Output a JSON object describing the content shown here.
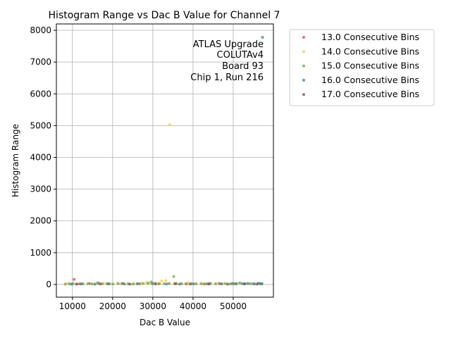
{
  "chart_data": {
    "type": "scatter",
    "title": "Histogram Range vs Dac B Value for Channel 7",
    "xlabel": "Dac B Value",
    "ylabel": "Histogram Range",
    "xlim": [
      6000,
      60000
    ],
    "ylim": [
      -400,
      8200
    ],
    "xticks": [
      10000,
      20000,
      30000,
      40000,
      50000
    ],
    "yticks": [
      0,
      1000,
      2000,
      3000,
      4000,
      5000,
      6000,
      7000,
      8000
    ],
    "grid": true,
    "legend_position": "outside-right",
    "annotation": [
      "ATLAS Upgrade",
      "COLUTAv4",
      "Board 93",
      "Chip 1, Run 216"
    ],
    "series": [
      {
        "name": "13.0 Consecutive Bins",
        "color": "#e8474a",
        "points": [
          [
            10400,
            160
          ],
          [
            11800,
            20
          ],
          [
            14200,
            30
          ],
          [
            16500,
            40
          ],
          [
            18800,
            15
          ],
          [
            22300,
            30
          ],
          [
            26800,
            20
          ],
          [
            31500,
            25
          ],
          [
            35800,
            30
          ],
          [
            38200,
            20
          ],
          [
            42700,
            15
          ],
          [
            46500,
            30
          ],
          [
            50200,
            20
          ],
          [
            54600,
            25
          ],
          [
            56800,
            15
          ]
        ]
      },
      {
        "name": "14.0 Consecutive Bins",
        "color": "#f5c842",
        "points": [
          [
            34200,
            5030
          ],
          [
            32200,
            110
          ],
          [
            33200,
            120
          ],
          [
            8600,
            30
          ],
          [
            9500,
            20
          ],
          [
            12500,
            25
          ],
          [
            15200,
            20
          ],
          [
            17800,
            30
          ],
          [
            19500,
            15
          ],
          [
            21200,
            40
          ],
          [
            23800,
            25
          ],
          [
            25300,
            20
          ],
          [
            27200,
            40
          ],
          [
            28400,
            60
          ],
          [
            29200,
            30
          ],
          [
            30800,
            50
          ],
          [
            31700,
            30
          ],
          [
            33900,
            20
          ],
          [
            35400,
            40
          ],
          [
            36900,
            25
          ],
          [
            38900,
            60
          ],
          [
            40500,
            30
          ],
          [
            42200,
            20
          ],
          [
            44100,
            40
          ],
          [
            45800,
            25
          ],
          [
            47400,
            30
          ],
          [
            49200,
            20
          ],
          [
            51300,
            35
          ],
          [
            53000,
            25
          ],
          [
            54800,
            20
          ],
          [
            56200,
            30
          ],
          [
            57100,
            15
          ]
        ]
      },
      {
        "name": "15.0 Consecutive Bins",
        "color": "#6aa84f",
        "points": [
          [
            35200,
            250
          ],
          [
            8200,
            10
          ],
          [
            9200,
            20
          ],
          [
            10200,
            30
          ],
          [
            11200,
            15
          ],
          [
            12600,
            20
          ],
          [
            13800,
            25
          ],
          [
            14800,
            15
          ],
          [
            16200,
            50
          ],
          [
            17400,
            20
          ],
          [
            18600,
            30
          ],
          [
            20100,
            15
          ],
          [
            21400,
            25
          ],
          [
            22600,
            30
          ],
          [
            23900,
            20
          ],
          [
            25100,
            15
          ],
          [
            26400,
            25
          ],
          [
            27600,
            30
          ],
          [
            28800,
            40
          ],
          [
            29600,
            80
          ],
          [
            30400,
            30
          ],
          [
            31600,
            20
          ],
          [
            32800,
            25
          ],
          [
            34100,
            30
          ],
          [
            35900,
            20
          ],
          [
            37200,
            25
          ],
          [
            38400,
            15
          ],
          [
            39600,
            30
          ],
          [
            40800,
            20
          ],
          [
            42000,
            25
          ],
          [
            43200,
            15
          ],
          [
            44400,
            30
          ],
          [
            45600,
            20
          ],
          [
            46800,
            25
          ],
          [
            48000,
            30
          ],
          [
            49300,
            15
          ],
          [
            50500,
            25
          ],
          [
            51700,
            50
          ],
          [
            52900,
            20
          ],
          [
            54100,
            25
          ],
          [
            55300,
            15
          ],
          [
            56500,
            30
          ],
          [
            57200,
            20
          ]
        ]
      },
      {
        "name": "16.0 Consecutive Bins",
        "color": "#3a7fb5",
        "points": [
          [
            57300,
            7780
          ],
          [
            9800,
            10
          ],
          [
            12200,
            15
          ],
          [
            15600,
            10
          ],
          [
            19100,
            20
          ],
          [
            22900,
            15
          ],
          [
            26100,
            20
          ],
          [
            29900,
            25
          ],
          [
            33400,
            15
          ],
          [
            36700,
            10
          ],
          [
            40100,
            15
          ],
          [
            43700,
            20
          ],
          [
            47100,
            15
          ],
          [
            49800,
            30
          ],
          [
            50800,
            20
          ],
          [
            52300,
            25
          ],
          [
            53600,
            30
          ],
          [
            55100,
            20
          ],
          [
            56300,
            35
          ],
          [
            57000,
            25
          ]
        ]
      },
      {
        "name": "17.0 Consecutive Bins",
        "color": "#8c4a5c",
        "points": [
          [
            11000,
            10
          ],
          [
            16900,
            15
          ],
          [
            24300,
            10
          ],
          [
            30700,
            15
          ],
          [
            35500,
            20
          ],
          [
            39300,
            10
          ],
          [
            44000,
            15
          ],
          [
            48600,
            10
          ],
          [
            52800,
            15
          ],
          [
            55900,
            10
          ]
        ]
      }
    ]
  }
}
